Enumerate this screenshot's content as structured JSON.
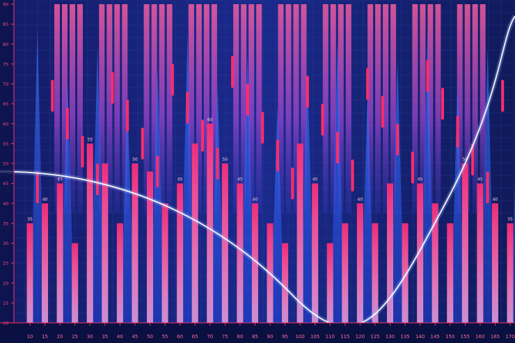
{
  "chart_data": {
    "type": "bar",
    "x": [
      10,
      15,
      20,
      25,
      30,
      35,
      40,
      45,
      50,
      55,
      60,
      65,
      70,
      75,
      80,
      85,
      90,
      95,
      100,
      105,
      110,
      115,
      120,
      125,
      130,
      135,
      140,
      145,
      150,
      155,
      160,
      165,
      170
    ],
    "values": [
      35,
      40,
      45,
      30,
      55,
      50,
      35,
      50,
      48,
      40,
      45,
      55,
      60,
      50,
      45,
      40,
      35,
      30,
      55,
      45,
      30,
      35,
      40,
      35,
      45,
      35,
      45,
      40,
      35,
      50,
      45,
      40,
      35
    ],
    "labeled": [
      35,
      40,
      45,
      null,
      55,
      null,
      null,
      50,
      null,
      null,
      45,
      null,
      60,
      50,
      45,
      40,
      null,
      null,
      null,
      45,
      null,
      null,
      40,
      null,
      null,
      null,
      45,
      null,
      null,
      50,
      45,
      40,
      35
    ],
    "ylim": [
      10,
      90
    ],
    "yticks": [
      10,
      15,
      20,
      25,
      30,
      35,
      40,
      45,
      50,
      55,
      60,
      65,
      70,
      75,
      80,
      85,
      90
    ],
    "grid": true,
    "colors": {
      "background": "#0c1450",
      "bar_top": "#ff2d7a",
      "bar_bottom": "#ff5aa0",
      "axis": "#ff3366",
      "grid": "#3a4bb8",
      "curve": "#ffffff"
    }
  }
}
